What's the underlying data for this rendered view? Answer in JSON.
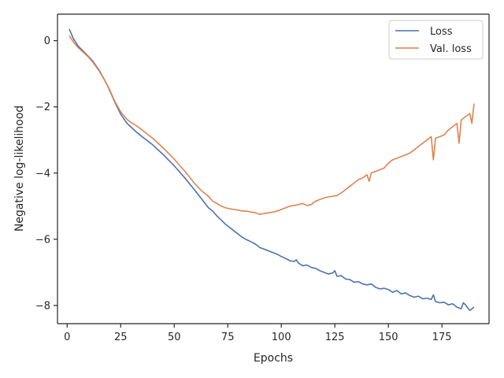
{
  "chart_data": {
    "type": "line",
    "title": "",
    "xlabel": "Epochs",
    "ylabel": "Negative log-likelihood",
    "xlim": [
      -4.5,
      197
    ],
    "ylim": [
      -8.55,
      0.8
    ],
    "xticks": [
      0,
      25,
      50,
      75,
      100,
      125,
      150,
      175
    ],
    "yticks": [
      -8,
      -6,
      -4,
      -2,
      0
    ],
    "tick_labels_x": [
      "0",
      "25",
      "50",
      "75",
      "100",
      "125",
      "150",
      "175"
    ],
    "tick_labels_y": [
      "−8",
      "−6",
      "−4",
      "−2",
      "0"
    ],
    "grid": false,
    "legend": "top-right",
    "series": [
      {
        "name": "Loss",
        "color": "#4c72b0",
        "x": [
          1,
          3,
          5,
          8,
          10,
          12,
          15,
          18,
          20,
          22,
          25,
          28,
          30,
          33,
          35,
          40,
          45,
          50,
          55,
          60,
          63,
          66,
          68,
          70,
          72,
          74,
          76,
          78,
          80,
          82,
          84,
          86,
          88,
          90,
          92,
          94,
          96,
          98,
          100,
          102,
          104,
          106,
          107,
          108,
          110,
          112,
          114,
          116,
          118,
          120,
          122,
          124,
          125,
          126,
          128,
          130,
          132,
          134,
          136,
          138,
          140,
          142,
          144,
          146,
          148,
          150,
          152,
          154,
          156,
          158,
          160,
          162,
          164,
          166,
          168,
          170,
          171,
          172,
          174,
          176,
          178,
          180,
          182,
          184,
          185,
          186,
          188,
          190
        ],
        "y": [
          0.35,
          0.05,
          -0.15,
          -0.35,
          -0.48,
          -0.62,
          -0.9,
          -1.25,
          -1.52,
          -1.82,
          -2.22,
          -2.5,
          -2.62,
          -2.8,
          -2.9,
          -3.15,
          -3.45,
          -3.78,
          -4.15,
          -4.55,
          -4.8,
          -5.05,
          -5.15,
          -5.3,
          -5.42,
          -5.55,
          -5.65,
          -5.75,
          -5.85,
          -5.95,
          -6.02,
          -6.08,
          -6.15,
          -6.25,
          -6.3,
          -6.35,
          -6.4,
          -6.45,
          -6.52,
          -6.58,
          -6.65,
          -6.67,
          -6.62,
          -6.72,
          -6.8,
          -6.78,
          -6.85,
          -6.88,
          -6.95,
          -7.0,
          -7.05,
          -7.02,
          -6.95,
          -7.12,
          -7.1,
          -7.2,
          -7.22,
          -7.3,
          -7.28,
          -7.35,
          -7.38,
          -7.35,
          -7.45,
          -7.5,
          -7.48,
          -7.52,
          -7.6,
          -7.55,
          -7.65,
          -7.62,
          -7.7,
          -7.75,
          -7.72,
          -7.8,
          -7.78,
          -7.82,
          -7.68,
          -7.88,
          -7.92,
          -7.9,
          -7.98,
          -7.95,
          -8.05,
          -8.1,
          -7.92,
          -7.98,
          -8.15,
          -8.05
        ]
      },
      {
        "name": "Val. loss",
        "color": "#dd8452",
        "x": [
          1,
          3,
          5,
          8,
          10,
          12,
          15,
          18,
          20,
          22,
          25,
          28,
          30,
          33,
          35,
          40,
          45,
          50,
          55,
          60,
          63,
          66,
          68,
          70,
          72,
          74,
          76,
          78,
          80,
          82,
          84,
          86,
          88,
          90,
          92,
          94,
          96,
          98,
          100,
          102,
          104,
          106,
          108,
          110,
          112,
          114,
          116,
          118,
          120,
          122,
          124,
          126,
          128,
          130,
          132,
          134,
          136,
          138,
          140,
          141,
          142,
          144,
          146,
          148,
          150,
          152,
          154,
          156,
          158,
          160,
          162,
          164,
          166,
          168,
          170,
          171,
          172,
          174,
          176,
          178,
          180,
          182,
          183,
          184,
          185,
          186,
          188,
          189,
          190
        ],
        "y": [
          0.15,
          -0.05,
          -0.2,
          -0.38,
          -0.5,
          -0.65,
          -0.92,
          -1.25,
          -1.5,
          -1.8,
          -2.15,
          -2.38,
          -2.48,
          -2.6,
          -2.7,
          -2.95,
          -3.25,
          -3.58,
          -3.95,
          -4.35,
          -4.55,
          -4.7,
          -4.85,
          -4.92,
          -5.0,
          -5.05,
          -5.08,
          -5.1,
          -5.12,
          -5.15,
          -5.15,
          -5.18,
          -5.2,
          -5.25,
          -5.22,
          -5.2,
          -5.18,
          -5.15,
          -5.1,
          -5.05,
          -5.0,
          -4.98,
          -4.95,
          -4.92,
          -4.98,
          -4.95,
          -4.85,
          -4.8,
          -4.75,
          -4.72,
          -4.7,
          -4.68,
          -4.6,
          -4.5,
          -4.4,
          -4.3,
          -4.2,
          -4.15,
          -4.05,
          -4.25,
          -4.0,
          -3.95,
          -3.9,
          -3.85,
          -3.7,
          -3.6,
          -3.55,
          -3.5,
          -3.45,
          -3.4,
          -3.3,
          -3.2,
          -3.1,
          -3.0,
          -2.9,
          -3.6,
          -2.95,
          -2.9,
          -2.85,
          -2.7,
          -2.6,
          -2.5,
          -3.1,
          -2.4,
          -2.35,
          -2.3,
          -2.2,
          -2.5,
          -1.9
        ]
      }
    ]
  }
}
